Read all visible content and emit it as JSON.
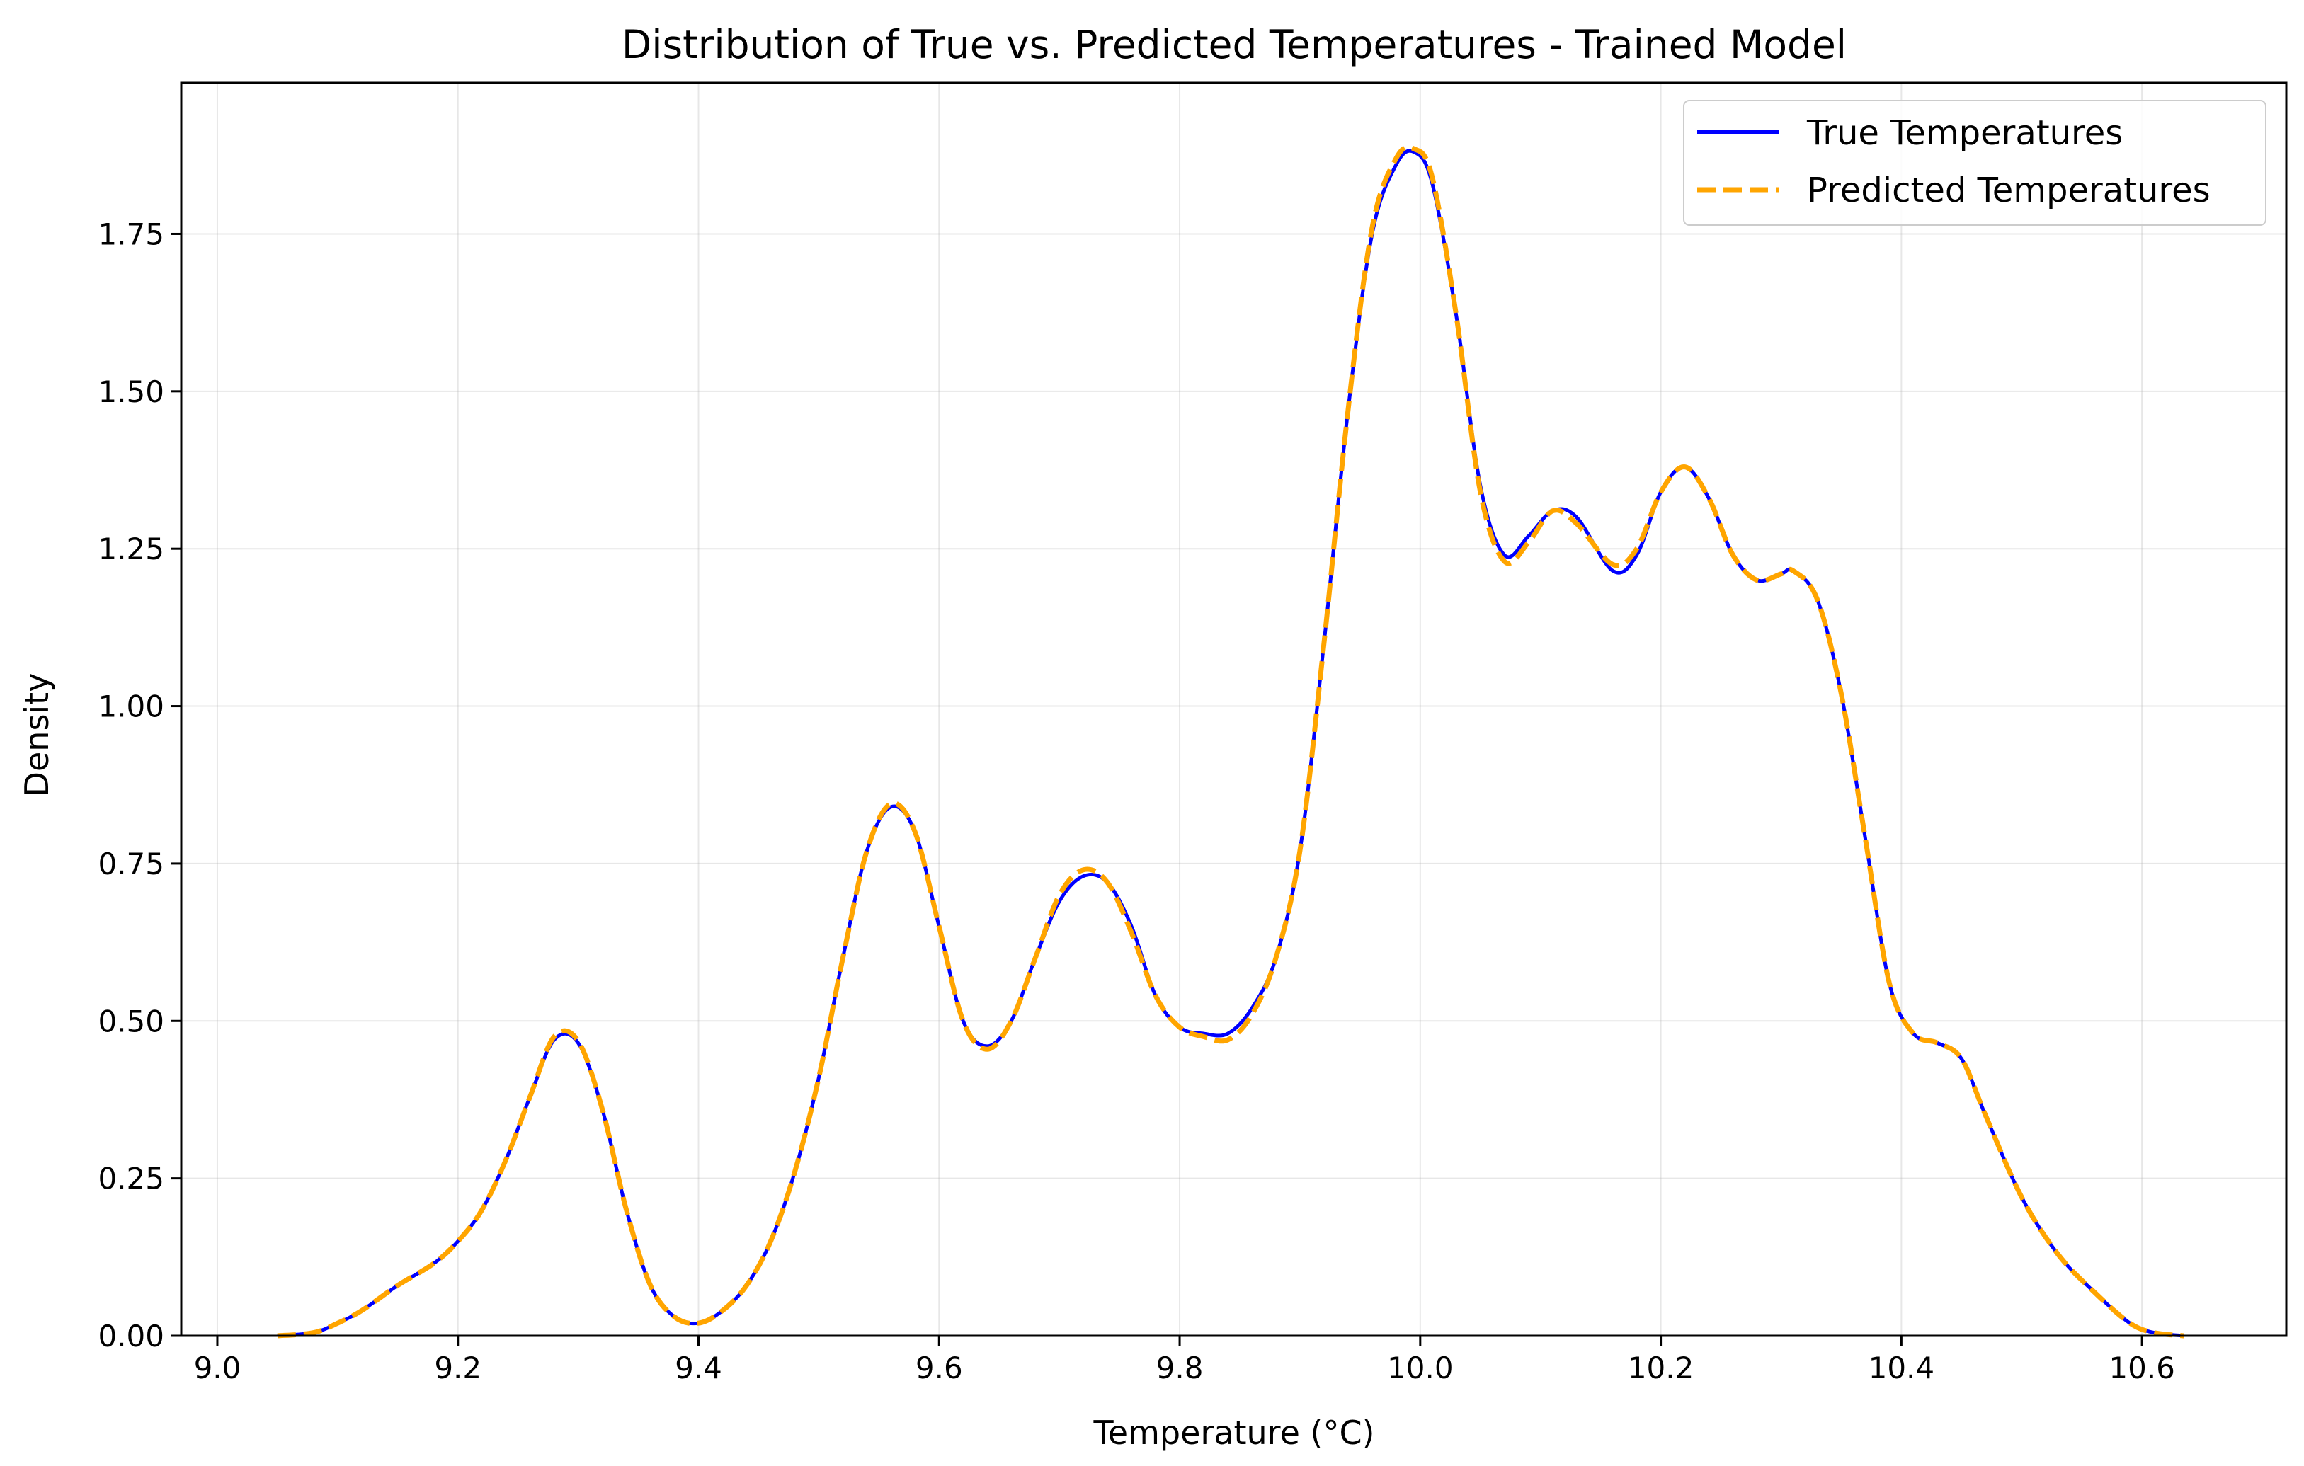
{
  "chart_data": {
    "type": "line",
    "title": "Distribution of True vs. Predicted Temperatures - Trained Model",
    "xlabel": "Temperature (°C)",
    "ylabel": "Density",
    "xlim": [
      8.97,
      10.72
    ],
    "ylim": [
      0.0,
      1.99
    ],
    "x_ticks": [
      9.0,
      9.2,
      9.4,
      9.6,
      9.8,
      10.0,
      10.2,
      10.4,
      10.6
    ],
    "x_tick_labels": [
      "9.0",
      "9.2",
      "9.4",
      "9.6",
      "9.8",
      "10.0",
      "10.2",
      "10.4",
      "10.6"
    ],
    "y_ticks": [
      0.0,
      0.25,
      0.5,
      0.75,
      1.0,
      1.25,
      1.5,
      1.75
    ],
    "y_tick_labels": [
      "0.00",
      "0.25",
      "0.50",
      "0.75",
      "1.00",
      "1.25",
      "1.50",
      "1.75"
    ],
    "grid": true,
    "legend_position": "top-right",
    "series": [
      {
        "name": "True Temperatures",
        "color": "#0000ff",
        "style": "solid",
        "points": [
          [
            9.05,
            0.0
          ],
          [
            9.08,
            0.005
          ],
          [
            9.1,
            0.02
          ],
          [
            9.12,
            0.04
          ],
          [
            9.15,
            0.08
          ],
          [
            9.18,
            0.115
          ],
          [
            9.2,
            0.15
          ],
          [
            9.22,
            0.2
          ],
          [
            9.24,
            0.28
          ],
          [
            9.26,
            0.38
          ],
          [
            9.28,
            0.47
          ],
          [
            9.3,
            0.465
          ],
          [
            9.32,
            0.36
          ],
          [
            9.34,
            0.2
          ],
          [
            9.36,
            0.08
          ],
          [
            9.38,
            0.03
          ],
          [
            9.4,
            0.02
          ],
          [
            9.42,
            0.04
          ],
          [
            9.44,
            0.08
          ],
          [
            9.46,
            0.15
          ],
          [
            9.48,
            0.26
          ],
          [
            9.5,
            0.41
          ],
          [
            9.52,
            0.6
          ],
          [
            9.54,
            0.77
          ],
          [
            9.56,
            0.84
          ],
          [
            9.58,
            0.8
          ],
          [
            9.6,
            0.65
          ],
          [
            9.62,
            0.5
          ],
          [
            9.64,
            0.46
          ],
          [
            9.66,
            0.5
          ],
          [
            9.68,
            0.6
          ],
          [
            9.7,
            0.69
          ],
          [
            9.72,
            0.73
          ],
          [
            9.74,
            0.72
          ],
          [
            9.76,
            0.65
          ],
          [
            9.78,
            0.54
          ],
          [
            9.8,
            0.49
          ],
          [
            9.82,
            0.48
          ],
          [
            9.84,
            0.48
          ],
          [
            9.86,
            0.52
          ],
          [
            9.88,
            0.6
          ],
          [
            9.9,
            0.77
          ],
          [
            9.92,
            1.1
          ],
          [
            9.94,
            1.47
          ],
          [
            9.96,
            1.75
          ],
          [
            9.98,
            1.86
          ],
          [
            9.995,
            1.88
          ],
          [
            10.01,
            1.83
          ],
          [
            10.03,
            1.62
          ],
          [
            10.05,
            1.35
          ],
          [
            10.07,
            1.24
          ],
          [
            10.09,
            1.27
          ],
          [
            10.11,
            1.31
          ],
          [
            10.13,
            1.3
          ],
          [
            10.16,
            1.215
          ],
          [
            10.18,
            1.24
          ],
          [
            10.2,
            1.34
          ],
          [
            10.22,
            1.38
          ],
          [
            10.24,
            1.33
          ],
          [
            10.26,
            1.24
          ],
          [
            10.28,
            1.2
          ],
          [
            10.3,
            1.21
          ],
          [
            10.31,
            1.215
          ],
          [
            10.33,
            1.17
          ],
          [
            10.35,
            1.02
          ],
          [
            10.37,
            0.79
          ],
          [
            10.39,
            0.56
          ],
          [
            10.41,
            0.48
          ],
          [
            10.43,
            0.465
          ],
          [
            10.45,
            0.44
          ],
          [
            10.47,
            0.35
          ],
          [
            10.5,
            0.22
          ],
          [
            10.53,
            0.13
          ],
          [
            10.56,
            0.07
          ],
          [
            10.59,
            0.02
          ],
          [
            10.61,
            0.005
          ],
          [
            10.635,
            0.0
          ]
        ]
      },
      {
        "name": "Predicted Temperatures",
        "color": "#ffa500",
        "style": "dashed",
        "points": [
          [
            9.05,
            0.0
          ],
          [
            9.08,
            0.005
          ],
          [
            9.1,
            0.02
          ],
          [
            9.12,
            0.04
          ],
          [
            9.15,
            0.08
          ],
          [
            9.18,
            0.115
          ],
          [
            9.2,
            0.15
          ],
          [
            9.22,
            0.2
          ],
          [
            9.24,
            0.28
          ],
          [
            9.26,
            0.38
          ],
          [
            9.28,
            0.475
          ],
          [
            9.3,
            0.468
          ],
          [
            9.32,
            0.36
          ],
          [
            9.34,
            0.2
          ],
          [
            9.36,
            0.08
          ],
          [
            9.38,
            0.03
          ],
          [
            9.4,
            0.02
          ],
          [
            9.42,
            0.04
          ],
          [
            9.44,
            0.08
          ],
          [
            9.46,
            0.15
          ],
          [
            9.48,
            0.26
          ],
          [
            9.5,
            0.41
          ],
          [
            9.52,
            0.6
          ],
          [
            9.54,
            0.77
          ],
          [
            9.56,
            0.845
          ],
          [
            9.58,
            0.8
          ],
          [
            9.6,
            0.65
          ],
          [
            9.62,
            0.5
          ],
          [
            9.64,
            0.455
          ],
          [
            9.66,
            0.5
          ],
          [
            9.68,
            0.6
          ],
          [
            9.7,
            0.7
          ],
          [
            9.72,
            0.74
          ],
          [
            9.74,
            0.72
          ],
          [
            9.76,
            0.64
          ],
          [
            9.78,
            0.54
          ],
          [
            9.8,
            0.49
          ],
          [
            9.82,
            0.475
          ],
          [
            9.84,
            0.47
          ],
          [
            9.86,
            0.51
          ],
          [
            9.88,
            0.6
          ],
          [
            9.9,
            0.77
          ],
          [
            9.92,
            1.1
          ],
          [
            9.94,
            1.47
          ],
          [
            9.96,
            1.76
          ],
          [
            9.98,
            1.87
          ],
          [
            9.995,
            1.885
          ],
          [
            10.01,
            1.84
          ],
          [
            10.03,
            1.62
          ],
          [
            10.05,
            1.34
          ],
          [
            10.07,
            1.23
          ],
          [
            10.09,
            1.26
          ],
          [
            10.11,
            1.31
          ],
          [
            10.13,
            1.29
          ],
          [
            10.16,
            1.225
          ],
          [
            10.18,
            1.25
          ],
          [
            10.2,
            1.34
          ],
          [
            10.22,
            1.38
          ],
          [
            10.24,
            1.33
          ],
          [
            10.26,
            1.24
          ],
          [
            10.28,
            1.2
          ],
          [
            10.3,
            1.21
          ],
          [
            10.31,
            1.215
          ],
          [
            10.33,
            1.17
          ],
          [
            10.35,
            1.02
          ],
          [
            10.37,
            0.79
          ],
          [
            10.39,
            0.56
          ],
          [
            10.41,
            0.48
          ],
          [
            10.43,
            0.465
          ],
          [
            10.45,
            0.44
          ],
          [
            10.47,
            0.35
          ],
          [
            10.5,
            0.22
          ],
          [
            10.53,
            0.13
          ],
          [
            10.56,
            0.07
          ],
          [
            10.59,
            0.02
          ],
          [
            10.61,
            0.005
          ],
          [
            10.635,
            0.0
          ]
        ]
      }
    ]
  }
}
